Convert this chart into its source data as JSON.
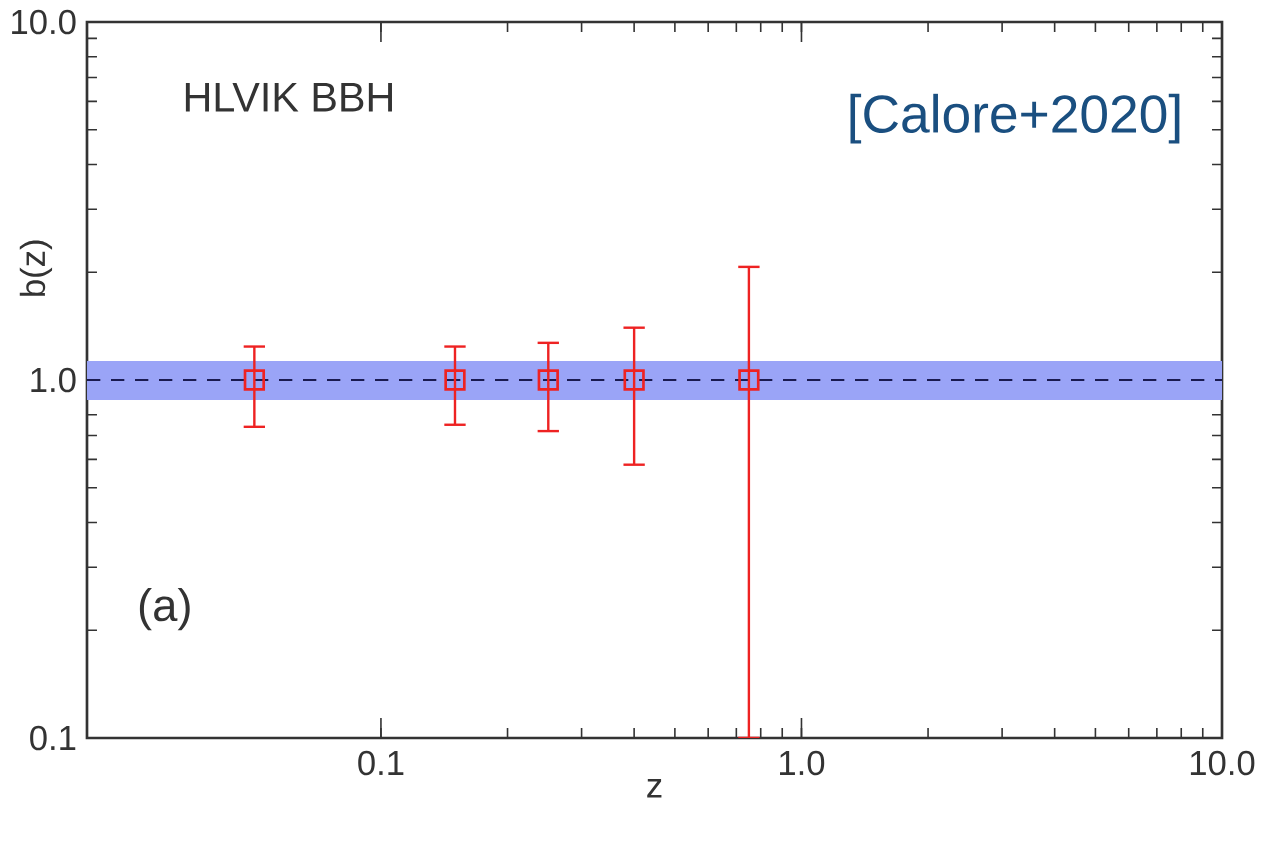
{
  "chart_data": {
    "type": "scatter",
    "xlabel": "z",
    "ylabel": "b(z)",
    "log": "xy",
    "xlim": [
      0.02,
      10.0
    ],
    "ylim": [
      0.1,
      10.0
    ],
    "xticks": [
      {
        "value": 0.1,
        "label": "0.1"
      },
      {
        "value": 1.0,
        "label": "1.0"
      },
      {
        "value": 10.0,
        "label": "10.0"
      }
    ],
    "yticks": [
      {
        "value": 0.1,
        "label": "0.1"
      },
      {
        "value": 1.0,
        "label": "1.0"
      },
      {
        "value": 10.0,
        "label": "10.0"
      }
    ],
    "marker": "square",
    "series": [
      {
        "color": "#ee2222",
        "x": [
          0.05,
          0.15,
          0.25,
          0.4,
          0.75
        ],
        "values": [
          1.0,
          1.0,
          1.0,
          1.0,
          1.0
        ],
        "errors": [
          [
            0.74,
            1.24
          ],
          [
            0.75,
            1.24
          ],
          [
            0.72,
            1.27
          ],
          [
            0.58,
            1.4
          ],
          [
            0.1,
            2.07
          ]
        ]
      }
    ],
    "ref_lines": [
      {
        "axis": "y",
        "value": 1.0,
        "color": "#1a1a50",
        "line_style": "dashed"
      }
    ],
    "bands": [
      {
        "axis": "y",
        "from": 0.88,
        "to": 1.13,
        "color": "#9aa4f7"
      }
    ],
    "annotations": [
      "HLVIK  BBH",
      "[Calore+2020]",
      "(a)"
    ]
  }
}
